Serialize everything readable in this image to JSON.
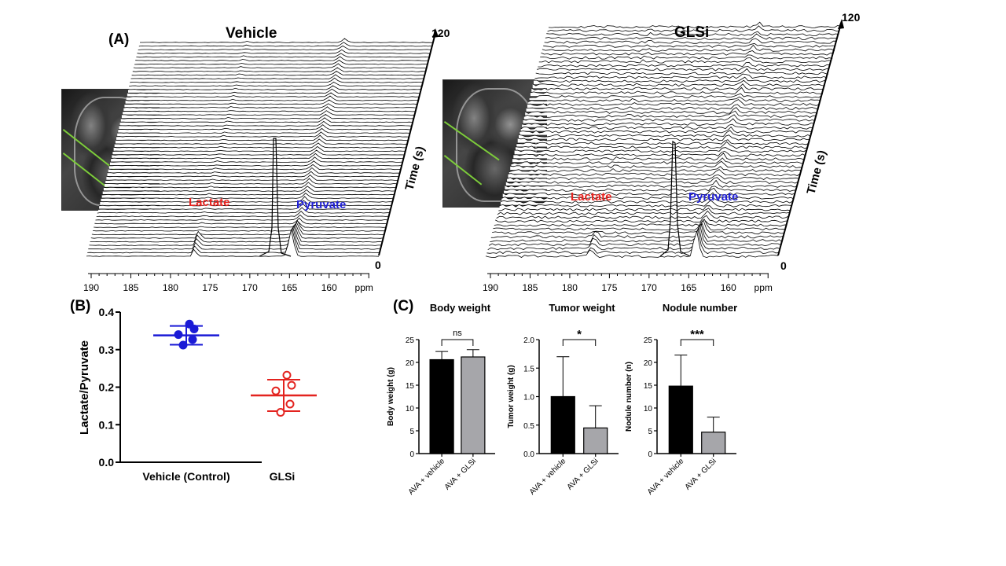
{
  "panels": {
    "a_label": "(A)",
    "b_label": "(B)",
    "c_label": "(C)"
  },
  "spectra": {
    "left_title": "Vehicle",
    "right_title": "GLSi",
    "time_axis_label": "Time (s)",
    "time_max": "120",
    "time_min": "0",
    "ppm_unit": "ppm",
    "ppm_ticks": [
      "190",
      "185",
      "180",
      "175",
      "170",
      "165",
      "160"
    ],
    "lactate_label": "Lactate",
    "pyruvate_label": "Pyruvate",
    "lactate_color": "#e8231f",
    "pyruvate_color": "#1f1fd6",
    "n_traces": 60
  },
  "chart_data": [
    {
      "type": "scatter",
      "panel": "B",
      "ylabel": "Lactate/Pyruvate",
      "ylim": [
        0.0,
        0.4
      ],
      "yticks": [
        "0.0",
        "0.1",
        "0.2",
        "0.3",
        "0.4"
      ],
      "categories": [
        "Vehicle (Control)",
        "GLSi"
      ],
      "series": [
        {
          "name": "Vehicle (Control)",
          "color": "#1a1ad6",
          "marker": "filled-circle",
          "values": [
            0.368,
            0.355,
            0.34,
            0.327,
            0.312
          ],
          "mean": 0.338,
          "sd": 0.025
        },
        {
          "name": "GLSi",
          "color": "#e3231f",
          "marker": "open-circle",
          "values": [
            0.232,
            0.205,
            0.19,
            0.155,
            0.133
          ],
          "mean": 0.178,
          "sd": 0.042
        }
      ]
    },
    {
      "type": "bar",
      "panel": "C",
      "title": "Body weight",
      "ylabel": "Body weight  (g)",
      "ylim": [
        0,
        25
      ],
      "yticks": [
        "0",
        "5",
        "10",
        "15",
        "20",
        "25"
      ],
      "categories": [
        "AVA + vehicle",
        "AVA + GLSi"
      ],
      "values": [
        20.6,
        21.2
      ],
      "errors": [
        1.8,
        1.6
      ],
      "colors": [
        "#000000",
        "#a6a6aa"
      ],
      "significance": "ns"
    },
    {
      "type": "bar",
      "panel": "C",
      "title": "Tumor weight",
      "ylabel": "Tumor weight  (g)",
      "ylim": [
        0,
        2.0
      ],
      "yticks": [
        "0.0",
        "0.5",
        "1.0",
        "1.5",
        "2.0"
      ],
      "categories": [
        "AVA + vehicle",
        "AVA + GLSi"
      ],
      "values": [
        1.0,
        0.45
      ],
      "errors": [
        0.7,
        0.39
      ],
      "colors": [
        "#000000",
        "#a6a6aa"
      ],
      "significance": "*"
    },
    {
      "type": "bar",
      "panel": "C",
      "title": "Nodule number",
      "ylabel": "Nodule number (n)",
      "ylim": [
        0,
        25
      ],
      "yticks": [
        "0",
        "5",
        "10",
        "15",
        "20",
        "25"
      ],
      "categories": [
        "AVA + vehicle",
        "AVA + GLSi"
      ],
      "values": [
        14.8,
        4.7
      ],
      "errors": [
        6.8,
        3.3
      ],
      "colors": [
        "#000000",
        "#a6a6aa"
      ],
      "significance": "***"
    }
  ]
}
